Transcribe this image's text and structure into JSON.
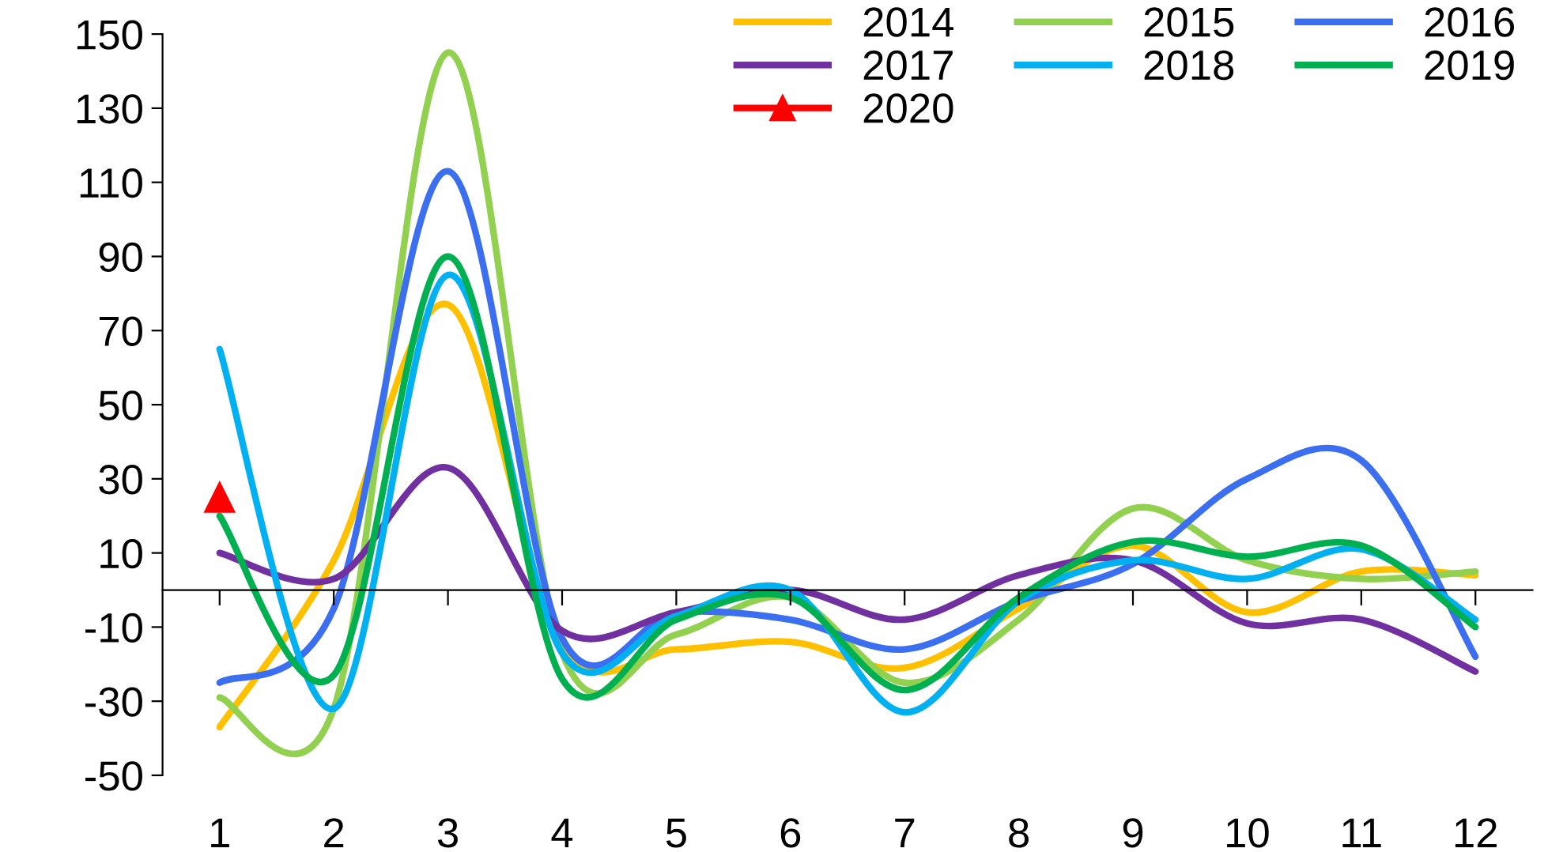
{
  "chart_data": {
    "type": "line",
    "categories": [
      "1",
      "2",
      "3",
      "4",
      "5",
      "6",
      "7",
      "8",
      "9",
      "10",
      "11",
      "12"
    ],
    "ylim": [
      -50,
      150
    ],
    "yticks": [
      -50,
      -30,
      -10,
      10,
      30,
      50,
      70,
      90,
      110,
      130,
      150
    ],
    "grid": false,
    "legend": "top right",
    "line_style": "solid",
    "marker": "none",
    "series": [
      {
        "name": "2014",
        "color": "#ffc000",
        "values": [
          -37,
          8,
          77,
          -15,
          -16,
          -14,
          -21,
          -5,
          12,
          -6,
          5,
          4
        ]
      },
      {
        "name": "2015",
        "color": "#92d050",
        "values": [
          -29,
          -32,
          145,
          -17,
          -12,
          -2,
          -25,
          -8,
          22,
          8,
          3,
          5
        ]
      },
      {
        "name": "2016",
        "color": "#3b6ff0",
        "values": [
          -25,
          -5,
          113,
          -13,
          -6,
          -8,
          -16,
          -3,
          7,
          30,
          35,
          -18
        ]
      },
      {
        "name": "2017",
        "color": "#7030a0",
        "values": [
          10,
          3,
          33,
          -11,
          -6,
          0,
          -8,
          4,
          8,
          -9,
          -8,
          -22
        ]
      },
      {
        "name": "2018",
        "color": "#00b0f0",
        "values": [
          65,
          -32,
          85,
          -17,
          -7,
          0,
          -33,
          -3,
          8,
          3,
          11,
          -8
        ]
      },
      {
        "name": "2019",
        "color": "#00b050",
        "values": [
          20,
          -23,
          90,
          -24,
          -8,
          -2,
          -27,
          -2,
          13,
          9,
          12,
          -10
        ]
      },
      {
        "name": "2020",
        "color": "#ff0000",
        "type": "scatter",
        "marker": "triangle",
        "values": [
          25,
          null,
          null,
          null,
          null,
          null,
          null,
          null,
          null,
          null,
          null,
          null
        ]
      }
    ]
  }
}
